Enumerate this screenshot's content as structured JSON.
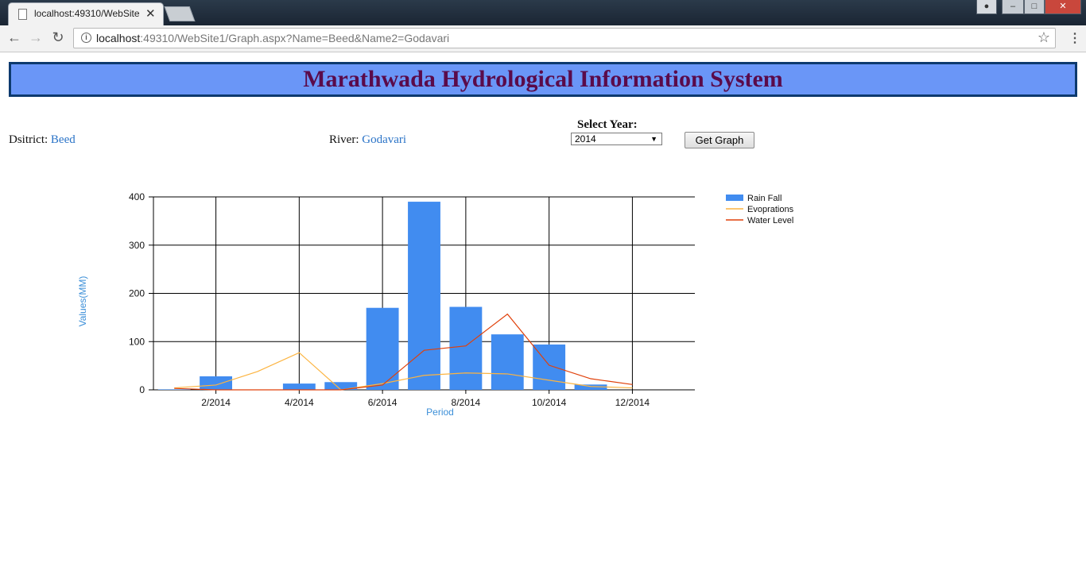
{
  "browser": {
    "tab_title": "localhost:49310/WebSite",
    "url_host": "localhost",
    "url_rest": ":49310/WebSite1/Graph.aspx?Name=Beed&Name2=Godavari"
  },
  "page": {
    "title": "Marathwada Hydrological Information System",
    "district_label": "Dsitrict:",
    "district_value": "Beed",
    "river_label": "River:",
    "river_value": "Godavari",
    "year_label": "Select Year:",
    "year_value": "2014",
    "get_graph_label": "Get Graph"
  },
  "colors": {
    "header_bg": "#6a96f7",
    "header_border": "#0d3a6e",
    "title_text": "#5a0b4a",
    "link_text": "#2a73c7",
    "rain_fall": "#418cf0",
    "evoprations": "#fcb441",
    "water_level": "#e0400a"
  },
  "chart_data": {
    "type": "bar",
    "title": "",
    "xlabel": "Period",
    "ylabel": "Values(MM)",
    "ylim": [
      0,
      400
    ],
    "yticks": [
      0,
      100,
      200,
      300,
      400
    ],
    "xticks": [
      "2/2014",
      "4/2014",
      "6/2014",
      "8/2014",
      "10/2014",
      "12/2014"
    ],
    "legend_position": "top-right",
    "grid": true,
    "x": [
      "1/2014",
      "2/2014",
      "3/2014",
      "4/2014",
      "5/2014",
      "6/2014",
      "7/2014",
      "8/2014",
      "9/2014",
      "10/2014",
      "11/2014",
      "12/2014"
    ],
    "series": [
      {
        "name": "Rain Fall",
        "type": "bar",
        "values": [
          1,
          28,
          0,
          13,
          16,
          170,
          390,
          172,
          115,
          94,
          11,
          0
        ]
      },
      {
        "name": "Evoprations",
        "type": "line",
        "values": [
          4,
          10,
          38,
          77,
          0,
          13,
          30,
          35,
          33,
          20,
          7,
          4
        ]
      },
      {
        "name": "Water Level",
        "type": "line",
        "values": [
          3,
          0,
          0,
          0,
          0,
          10,
          82,
          91,
          157,
          51,
          23,
          11
        ]
      }
    ]
  }
}
